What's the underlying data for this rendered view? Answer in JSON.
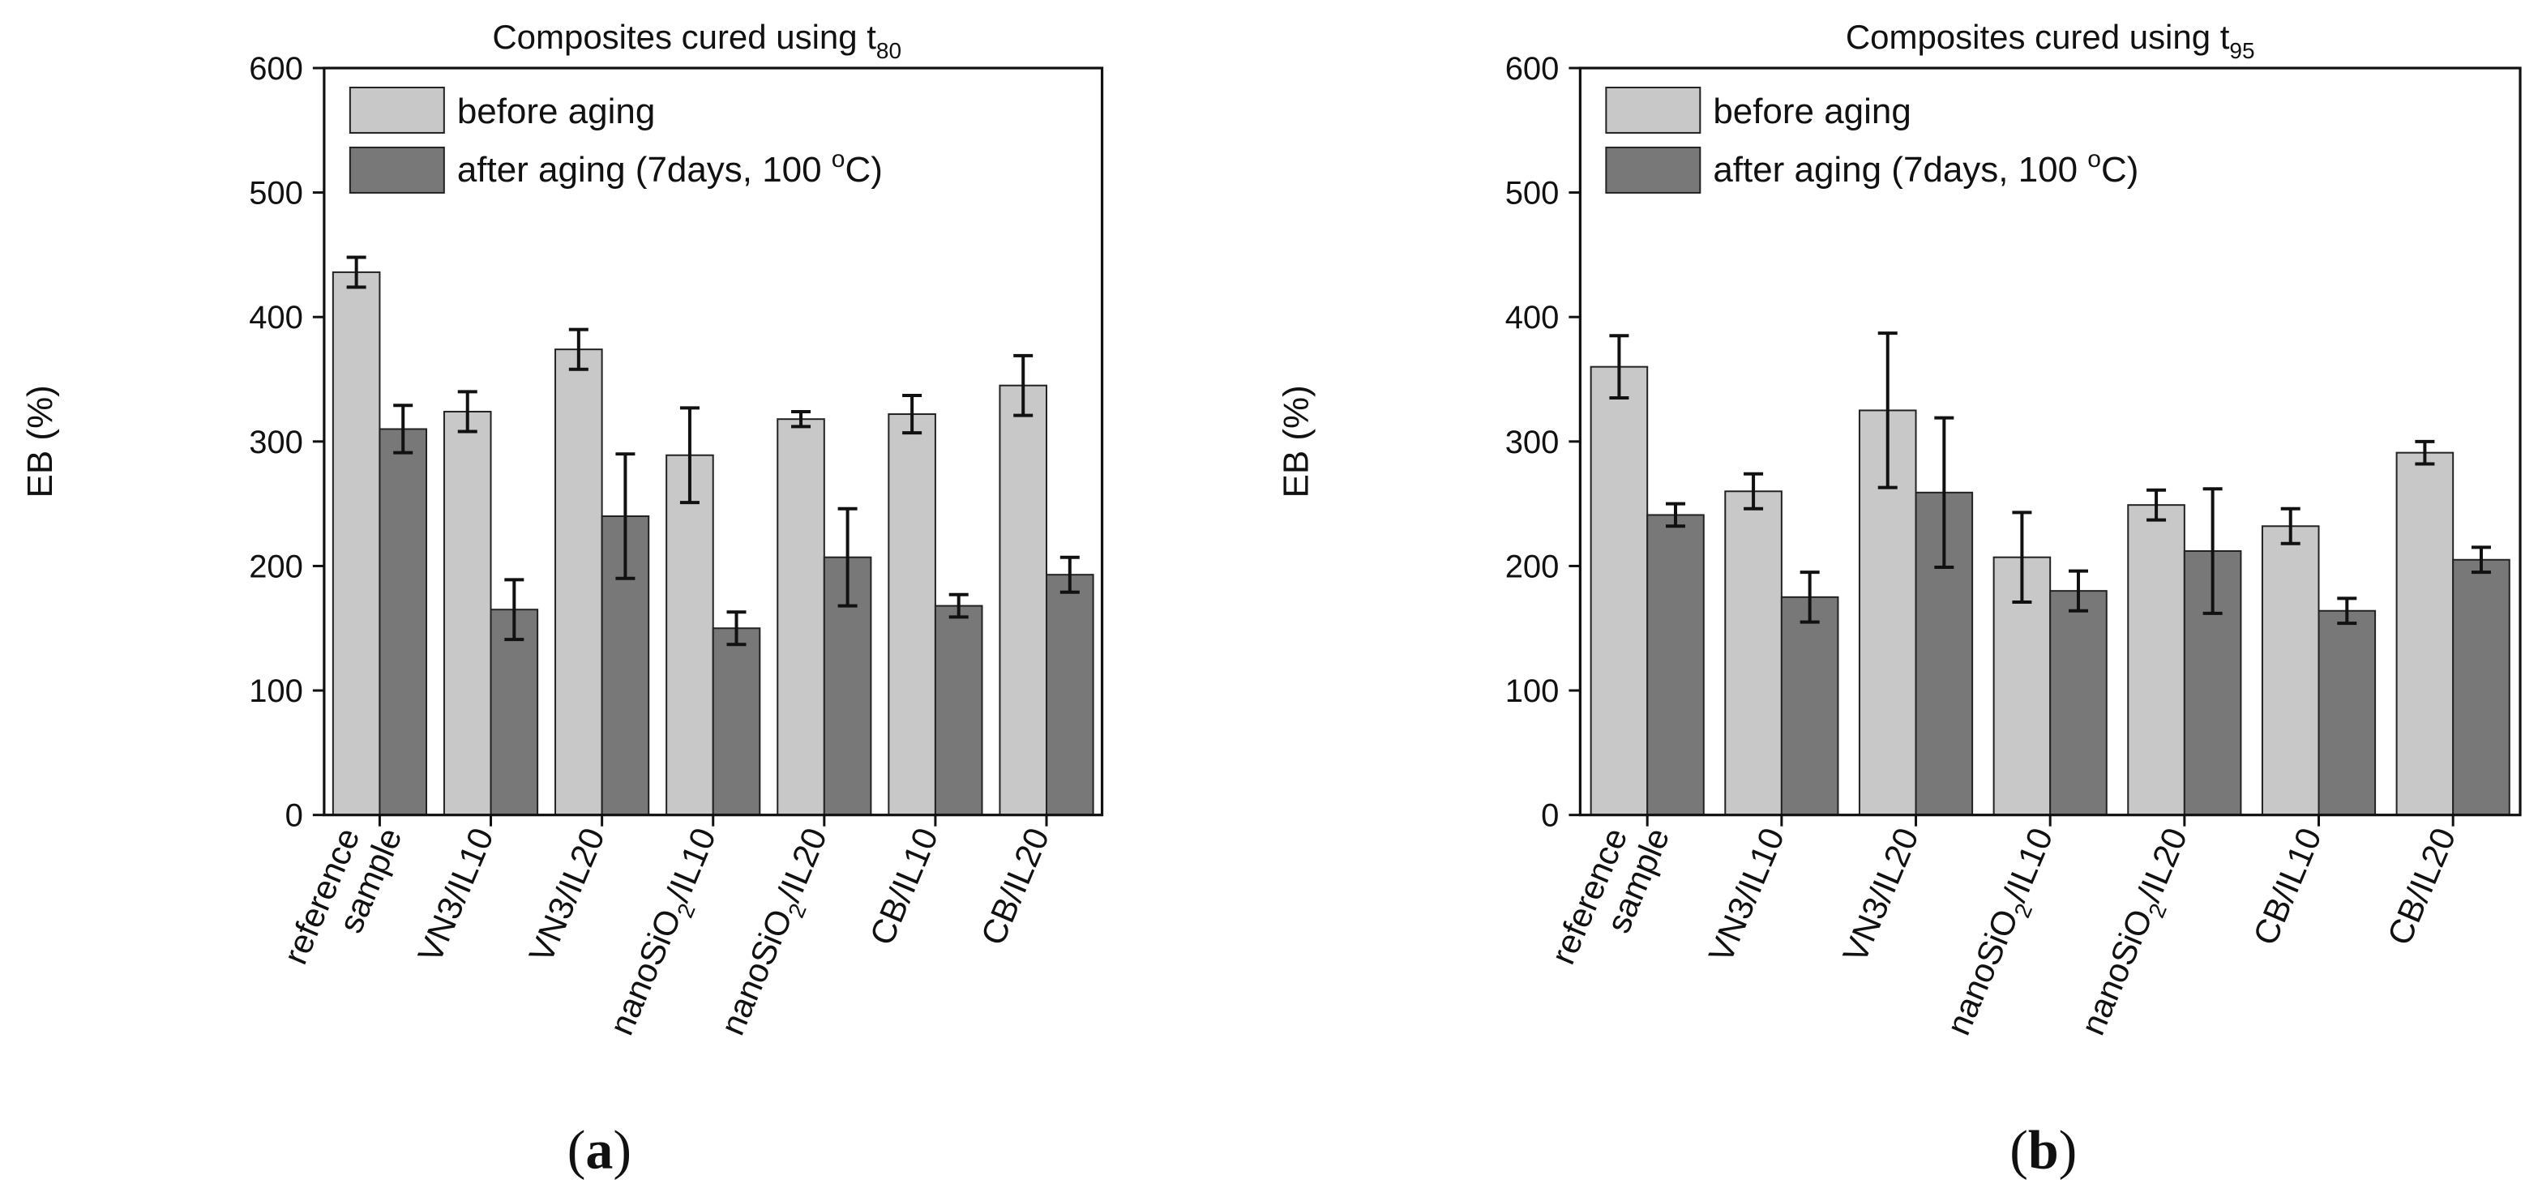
{
  "legend": {
    "before_label": "before aging",
    "after_label_prefix": "after aging (7days, 100 ",
    "after_label_sup": "o",
    "after_label_suffix": "C)"
  },
  "colors": {
    "before": "#c8c8c8",
    "after": "#787878",
    "axis": "#111111"
  },
  "chart_data": [
    {
      "type": "bar",
      "panel_label": "a",
      "title_main": "Composites cured using t",
      "title_sub": "80",
      "ylabel": "EB (%)",
      "ylim": [
        0,
        600
      ],
      "yticks": [
        "0",
        "100",
        "200",
        "300",
        "400",
        "500",
        "600"
      ],
      "categories": [
        {
          "lines": [
            {
              "main": "reference",
              "sub": "",
              "tail": ""
            },
            {
              "main": "sample",
              "sub": "",
              "tail": ""
            }
          ]
        },
        {
          "lines": [
            {
              "main": "VN3/IL10",
              "sub": "",
              "tail": ""
            }
          ]
        },
        {
          "lines": [
            {
              "main": "VN3/IL20",
              "sub": "",
              "tail": ""
            }
          ]
        },
        {
          "lines": [
            {
              "main": "nanoSiO",
              "sub": "2",
              "tail": "/IL10"
            }
          ]
        },
        {
          "lines": [
            {
              "main": "nanoSiO",
              "sub": "2",
              "tail": "/IL20"
            }
          ]
        },
        {
          "lines": [
            {
              "main": "CB/IL10",
              "sub": "",
              "tail": ""
            }
          ]
        },
        {
          "lines": [
            {
              "main": "CB/IL20",
              "sub": "",
              "tail": ""
            }
          ]
        }
      ],
      "series": [
        {
          "name": "before aging",
          "values": [
            436,
            324,
            374,
            289,
            318,
            322,
            345
          ],
          "errors": [
            12,
            16,
            16,
            38,
            6,
            15,
            24
          ]
        },
        {
          "name": "after aging (7days, 100 oC)",
          "values": [
            310,
            165,
            240,
            150,
            207,
            168,
            193
          ],
          "errors": [
            19,
            24,
            50,
            13,
            39,
            9,
            14
          ]
        }
      ]
    },
    {
      "type": "bar",
      "panel_label": "b",
      "title_main": "Composites cured using t",
      "title_sub": "95",
      "ylabel": "EB (%)",
      "ylim": [
        0,
        600
      ],
      "yticks": [
        "0",
        "100",
        "200",
        "300",
        "400",
        "500",
        "600"
      ],
      "categories": [
        {
          "lines": [
            {
              "main": "reference",
              "sub": "",
              "tail": ""
            },
            {
              "main": "sample",
              "sub": "",
              "tail": ""
            }
          ]
        },
        {
          "lines": [
            {
              "main": "VN3/IL10",
              "sub": "",
              "tail": ""
            }
          ]
        },
        {
          "lines": [
            {
              "main": "VN3/IL20",
              "sub": "",
              "tail": ""
            }
          ]
        },
        {
          "lines": [
            {
              "main": "nanoSiO",
              "sub": "2",
              "tail": "/IL10"
            }
          ]
        },
        {
          "lines": [
            {
              "main": "nanoSiO",
              "sub": "2",
              "tail": "/IL20"
            }
          ]
        },
        {
          "lines": [
            {
              "main": "CB/IL10",
              "sub": "",
              "tail": ""
            }
          ]
        },
        {
          "lines": [
            {
              "main": "CB/IL20",
              "sub": "",
              "tail": ""
            }
          ]
        }
      ],
      "series": [
        {
          "name": "before aging",
          "values": [
            360,
            260,
            325,
            207,
            249,
            232,
            291
          ],
          "errors": [
            25,
            14,
            62,
            36,
            12,
            14,
            9
          ]
        },
        {
          "name": "after aging (7days, 100 oC)",
          "values": [
            241,
            175,
            259,
            180,
            212,
            164,
            205
          ],
          "errors": [
            9,
            20,
            60,
            16,
            50,
            10,
            10
          ]
        }
      ]
    }
  ]
}
